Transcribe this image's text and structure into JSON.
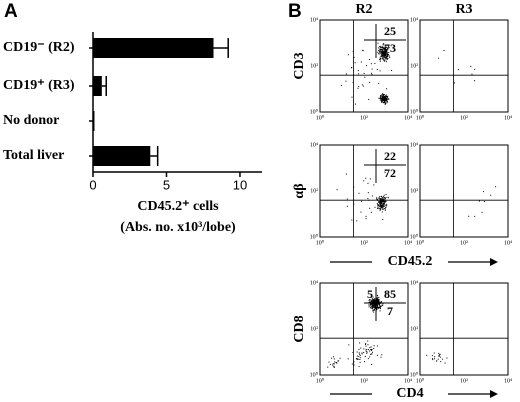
{
  "panel_labels": [
    "A",
    "B"
  ],
  "chart_data": {
    "type": "bar",
    "orientation": "horizontal",
    "categories": [
      "CD19⁻ (R2)",
      "CD19⁺ (R3)",
      "No donor",
      "Total liver"
    ],
    "values": [
      8.2,
      0.6,
      0.1,
      3.9
    ],
    "errors": [
      1.0,
      0.3,
      0,
      0.5
    ],
    "color": "#000000",
    "xlabel": [
      "CD45.2⁺ cells",
      "(Abs. no. x10³/lobe)"
    ],
    "xlim": [
      0,
      11.5
    ],
    "xticks": [
      0,
      5,
      10
    ]
  },
  "flow": {
    "columns": [
      "R2",
      "R3"
    ],
    "rows": [
      {
        "ylabel": "CD3",
        "quadrants": [
          "25",
          "73"
        ]
      },
      {
        "ylabel": "αβ",
        "quadrants": [
          "22",
          "72"
        ]
      },
      {
        "ylabel": "CD8",
        "quadrants": [
          "5",
          "85",
          "7"
        ]
      }
    ],
    "xlabels": [
      "CD45.2",
      "CD4"
    ],
    "axis_ticks": [
      "10⁰",
      "10²",
      "10⁴"
    ]
  }
}
